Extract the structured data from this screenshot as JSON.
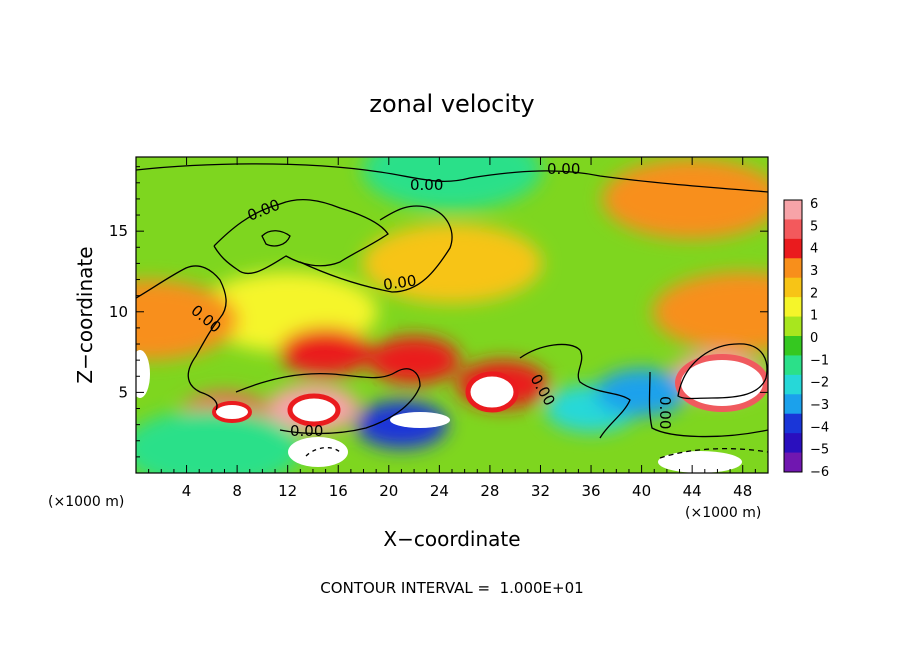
{
  "chart_data": {
    "type": "heatmap",
    "title": "zonal velocity",
    "xlabel": "X−coordinate",
    "ylabel": "Z−coordinate",
    "x_unit_left": "(×1000 m)",
    "x_unit_right": "(×1000 m)",
    "xlim": [
      0,
      50
    ],
    "ylim": [
      0,
      19.6
    ],
    "x_ticks": [
      4,
      8,
      12,
      16,
      20,
      24,
      28,
      32,
      36,
      40,
      44,
      48
    ],
    "y_ticks": [
      5,
      10,
      15
    ],
    "colorbar": {
      "ticks": [
        6,
        5,
        4,
        3,
        2,
        1,
        0,
        -1,
        -2,
        -3,
        -4,
        -5,
        -6
      ],
      "colors": [
        "#f7a3a8",
        "#f3595c",
        "#ea1b1e",
        "#f88f1b",
        "#f7c416",
        "#f5f52a",
        "#a8e61e",
        "#35c820",
        "#2be089",
        "#26d8d8",
        "#1ba1ec",
        "#1a36d8",
        "#2a0fbe",
        "#7017b0"
      ]
    },
    "contour_labels": [
      "0.00",
      "0.00",
      "0.00",
      "0.00",
      "0.00",
      "0.00",
      "0.00",
      "0.00"
    ],
    "field_features": [
      {
        "x": 12,
        "z": 10,
        "value": 1
      },
      {
        "x": 25,
        "z": 13,
        "value": 2
      },
      {
        "x": 44,
        "z": 17,
        "value": 3
      },
      {
        "x": 48,
        "z": 10,
        "value": 3
      },
      {
        "x": 1,
        "z": 9.5,
        "value": 3.5
      },
      {
        "x": 15,
        "z": 7.5,
        "value": 4.5
      },
      {
        "x": 22,
        "z": 7,
        "value": 4
      },
      {
        "x": 29,
        "z": 5.5,
        "value": 4.5
      },
      {
        "x": 46,
        "z": 6,
        "value": 6.5
      },
      {
        "x": 14,
        "z": 4,
        "value": 6
      },
      {
        "x": 7,
        "z": 3.5,
        "value": 5
      },
      {
        "x": 21,
        "z": 3,
        "value": -5
      },
      {
        "x": 36,
        "z": 4,
        "value": -3
      },
      {
        "x": 6,
        "z": 1.5,
        "value": -2
      },
      {
        "x": 25,
        "z": 18.8,
        "value": -2
      },
      {
        "x": 40,
        "z": 5,
        "value": -3.5
      }
    ],
    "footer": "CONTOUR INTERVAL =  1.000E+01"
  }
}
